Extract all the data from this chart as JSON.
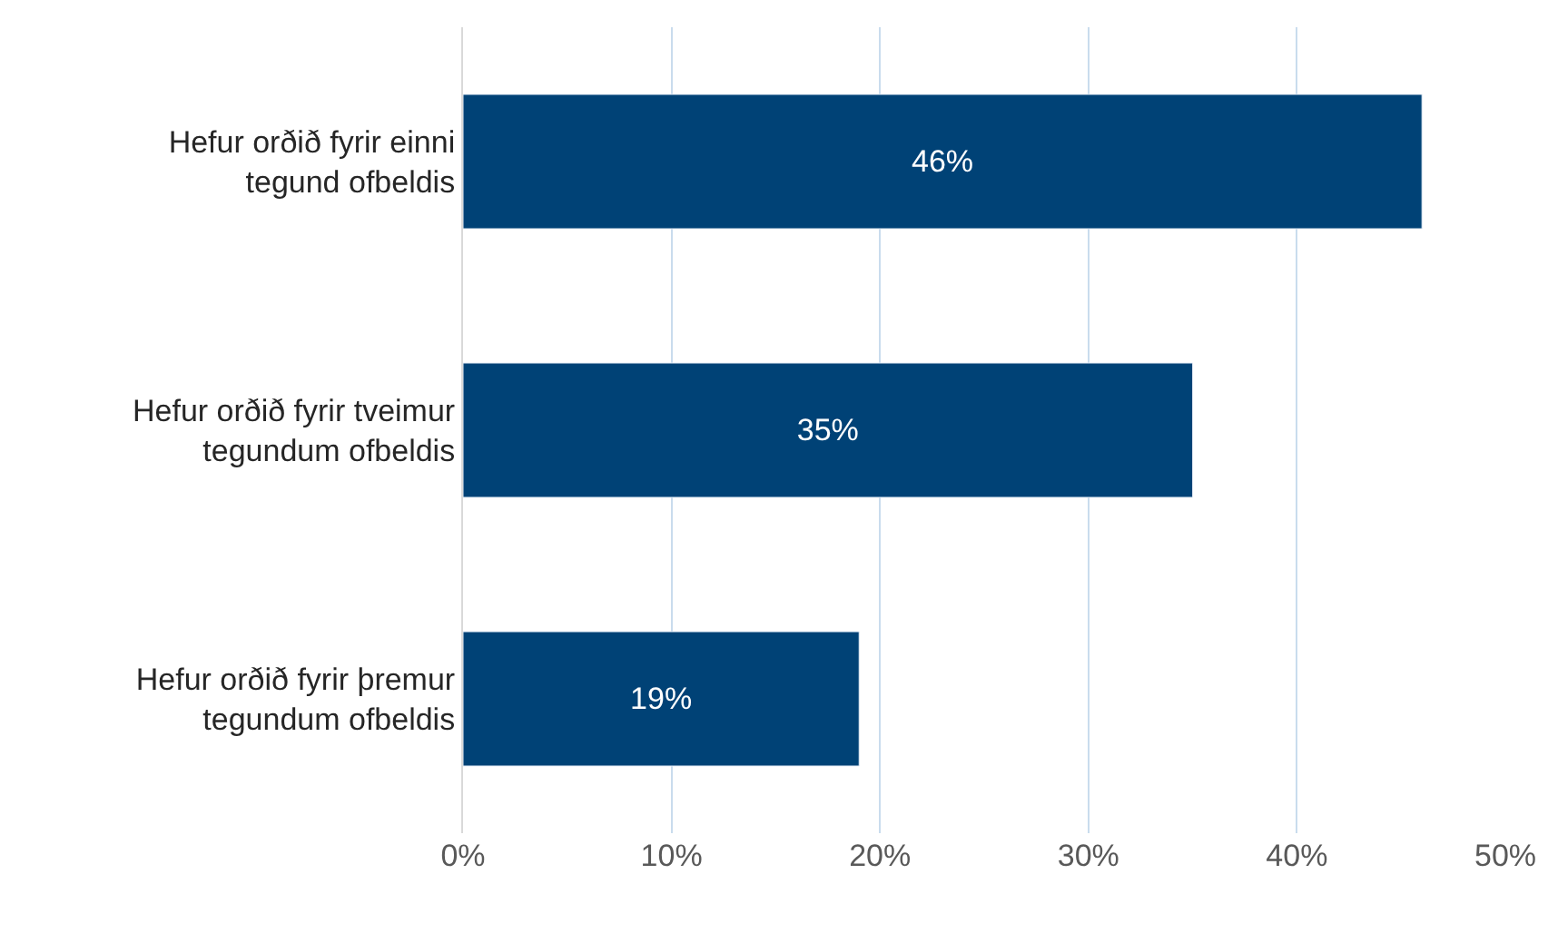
{
  "chart_data": {
    "type": "bar",
    "orientation": "horizontal",
    "categories": [
      "Hefur orðið fyrir einni tegund ofbeldis",
      "Hefur orðið fyrir tveimur tegundum ofbeldis",
      "Hefur orðið fyrir þremur tegundum ofbeldis"
    ],
    "values": [
      46,
      35,
      19
    ],
    "value_labels": [
      "46%",
      "35%",
      "19%"
    ],
    "color": "#004276",
    "xlim": [
      0,
      50
    ],
    "xticks": [
      {
        "value": 0,
        "label": "0%"
      },
      {
        "value": 10,
        "label": "10%"
      },
      {
        "value": 20,
        "label": "20%"
      },
      {
        "value": 30,
        "label": "30%"
      },
      {
        "value": 40,
        "label": "40%"
      },
      {
        "value": 50,
        "label": "50%"
      }
    ],
    "grid": "x"
  }
}
